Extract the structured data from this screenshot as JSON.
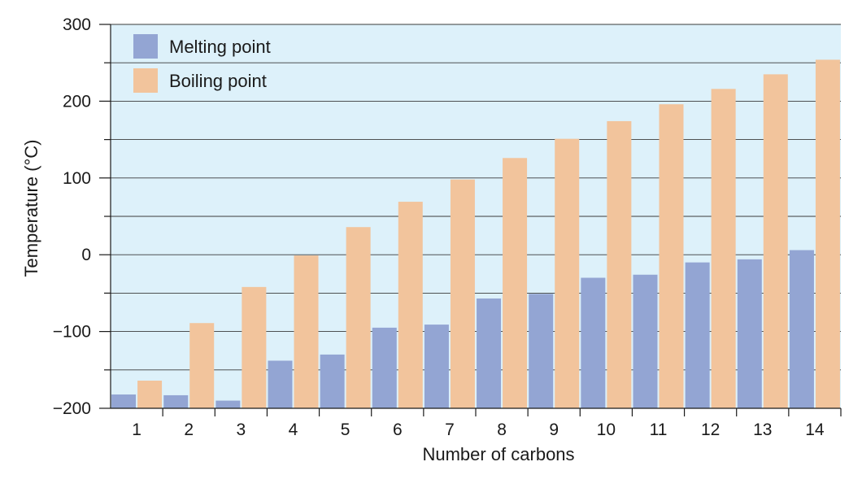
{
  "chart_data": {
    "type": "bar",
    "title": "",
    "xlabel": "Number of carbons",
    "ylabel": "Temperature (°C)",
    "ylim": [
      -200,
      300
    ],
    "yticks_labeled": [
      {
        "value": 300,
        "label": "300"
      },
      {
        "value": 200,
        "label": "200"
      },
      {
        "value": 100,
        "label": "100"
      },
      {
        "value": 0,
        "label": "0"
      },
      {
        "value": -100,
        "label": "−100"
      },
      {
        "value": -200,
        "label": "−200"
      }
    ],
    "yticks_minor": [
      250,
      150,
      50,
      -50,
      -150
    ],
    "grid": true,
    "legend_position": "top-left",
    "categories": [
      "1",
      "2",
      "3",
      "4",
      "5",
      "6",
      "7",
      "8",
      "9",
      "10",
      "11",
      "12",
      "13",
      "14"
    ],
    "series": [
      {
        "name": "Melting point",
        "color": "#93a5d3",
        "values": [
          -182,
          -183,
          -190,
          -138,
          -130,
          -95,
          -91,
          -57,
          -51,
          -30,
          -26,
          -10,
          -6,
          6
        ]
      },
      {
        "name": "Boiling point",
        "color": "#f2c49c",
        "values": [
          -164,
          -89,
          -42,
          -1,
          36,
          69,
          98,
          126,
          151,
          174,
          196,
          216,
          235,
          254
        ]
      }
    ]
  }
}
